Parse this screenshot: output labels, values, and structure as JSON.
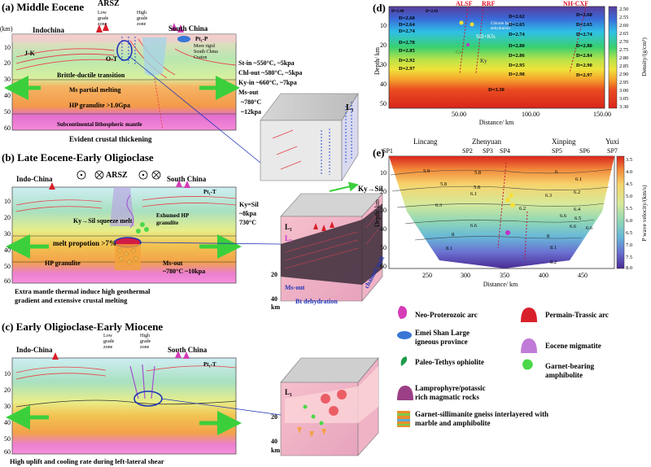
{
  "panel_a": {
    "title": "(a) Middle Eocene",
    "km_unit": "(km)",
    "arsz": "ARSZ",
    "low_grade_zone": [
      "Low",
      "grade",
      "zone"
    ],
    "high_grade_zone": [
      "High",
      "grade",
      "zone"
    ],
    "indochina": "Indochina",
    "south_china": "South China",
    "pt1_p": "Pt₁-P",
    "more_rigid": [
      "More rigid",
      "South China",
      "Craton"
    ],
    "j_k": "J-K",
    "o_t": "O-T",
    "brittle_ductile": "Brittle-ductile transition",
    "ms_partial_melting": "Ms partial melting",
    "hp_granulite": "HP granulite >1.0Gpa",
    "subcontinental": "Subcontinental lithospheric mantle",
    "caption": "Evident crustal thickening",
    "depth_ticks": [
      "10",
      "20",
      "30",
      "40",
      "50",
      "60"
    ],
    "conditions": [
      "St-in ~550°C, ~5kpa",
      "Chl-out ~580°C, ~5kpa",
      "Ky-in ~660°C, ~7kpa",
      "Ms-out",
      "~780°C",
      "~12kpa"
    ],
    "block_label": "L₁"
  },
  "panel_b": {
    "title": "(b) Late Eocene-Early Oligioclase",
    "indochina": "Indo-China",
    "arsz": "ARSZ",
    "south_china": "South China",
    "pt1_t": "Pt₁-T",
    "ky_sil_squeeze": "Ky→Sil squeeze melt",
    "exhumed": [
      "Exhumed HP",
      "granulite"
    ],
    "melt_proportion": "melt propotion >7%",
    "hp_granulite": "HP granulite",
    "ms_out": [
      "Ms-out",
      "~780°C ~10kpa"
    ],
    "caption": [
      "Extra mantle thermal induce high  geothermal",
      "gradient and extensive crustal melting"
    ],
    "depth_ticks": [
      "10",
      "20",
      "30",
      "40",
      "50",
      "60"
    ],
    "ky_sil_cond": [
      "Ky=Sil",
      "~8kpa",
      "730°C"
    ],
    "block_l1": "L₁",
    "block_l2": "L₂",
    "ky_sil_arrow": "Ky→Sil",
    "block_depth": [
      "20",
      "40",
      "km"
    ],
    "ms_out_block": "Ms-out",
    "bt_dehydration": "Bt dehydration",
    "channel_melt": "channel melt"
  },
  "panel_c": {
    "title": "(c) Early Oligioclase-Early Miocene",
    "indochina": "Indo-China",
    "low_grade_zone": [
      "Low",
      "grade",
      "zone"
    ],
    "high_grade_zone": [
      "High",
      "grade",
      "zone"
    ],
    "south_china": "South China",
    "pt1_t": "Pt₁-T",
    "caption": "High uplift and cooling rate during left-lateral shear",
    "depth_ticks": [
      "10",
      "20",
      "30",
      "40",
      "50",
      "60"
    ],
    "block_label": "L₁",
    "block_depth": [
      "20",
      "40",
      "km"
    ]
  },
  "panel_d": {
    "title": "(d)",
    "alsf": "ALSF",
    "rrf": "RRF",
    "nh_cxf": "NH-CXF",
    "chlorite": [
      "Chlorite fast",
      "dehydration"
    ],
    "sill_kfs": "Sill+Kfs",
    "grt": "Grt",
    "ky": "Ky",
    "density_labels": [
      {
        "t": "D=2.40"
      },
      {
        "t": "D=2.42"
      },
      {
        "t": "D=2.60"
      },
      {
        "t": "D=2.64"
      },
      {
        "t": "D=2.74"
      },
      {
        "t": "D=2.62"
      },
      {
        "t": "D=2.65"
      },
      {
        "t": "D=2.74"
      },
      {
        "t": "D=2.60"
      },
      {
        "t": "D=2.65"
      },
      {
        "t": "D=2.74"
      },
      {
        "t": "D=2.78"
      },
      {
        "t": "D=2.85"
      },
      {
        "t": "D=2.92"
      },
      {
        "t": "D=2.97"
      },
      {
        "t": "D=2.80"
      },
      {
        "t": "D=2.86"
      },
      {
        "t": "D=2.95"
      },
      {
        "t": "D=2.98"
      },
      {
        "t": "D=2.80"
      },
      {
        "t": "D=2.84"
      },
      {
        "t": "D=2.90"
      },
      {
        "t": "D=2.97"
      },
      {
        "t": "D=3.30"
      }
    ],
    "y_ticks": [
      "10",
      "20",
      "30",
      "40",
      "50"
    ],
    "x_ticks": [
      "50.00",
      "100.00",
      "150.00"
    ],
    "ylabel": "Depth/ km",
    "xlabel": "Distance/ km",
    "colorbar_ticks": [
      "2.50",
      "2.55",
      "2.60",
      "2.65",
      "2.70",
      "2.75",
      "2.80",
      "2.85",
      "2.90",
      "2.95",
      "3.00",
      "3.05",
      "3.30"
    ],
    "colorbar_label": "Density/(g/cm³)"
  },
  "panel_e": {
    "title": "(e)",
    "places": [
      "Lincang",
      "Zhenyuan",
      "Xinping",
      "Yuxi"
    ],
    "stations": [
      "SP1",
      "SP2",
      "SP3",
      "SP4",
      "SP5",
      "SP6",
      "SP7"
    ],
    "contours": [
      "5.9",
      "5.8",
      "5.8",
      "6",
      "6.1",
      "5.8",
      "6.1",
      "6.2",
      "6.3",
      "6.3",
      "6.2",
      "6.4",
      "6.5",
      "6.6",
      "6.6",
      "6.6",
      "6.6",
      "8",
      "8",
      "8.1",
      "8.1",
      "8.2"
    ],
    "y_ticks": [
      "10",
      "20",
      "30",
      "40",
      "50",
      "60"
    ],
    "x_ticks": [
      "250",
      "300",
      "350",
      "400",
      "450"
    ],
    "ylabel": "Depth/ km",
    "xlabel": "Distance/ km",
    "colorbar_ticks": [
      "3.5",
      "4.0",
      "4.5",
      "5.0",
      "5.5",
      "6.0",
      "6.5",
      "7.0",
      "7.5",
      "8.0"
    ],
    "colorbar_label": "P wave velocity/(km/s)"
  },
  "legend": {
    "items": [
      {
        "label": [
          "Neo-Proterozoic arc"
        ],
        "icon": "neo-proterozoic-arc-icon",
        "color": "#d63bb8"
      },
      {
        "label": [
          "Permain-Trassic arc"
        ],
        "icon": "permian-triassic-arc-icon",
        "color": "#d8202a"
      },
      {
        "label": [
          "Emei Shan Large",
          "igneous province"
        ],
        "icon": "emei-shan-lip-icon",
        "color": "#3877d6"
      },
      {
        "label": [
          "Eocene migmatite"
        ],
        "icon": "eocene-migmatite-icon",
        "color": "#c07bd8"
      },
      {
        "label": [
          "Paleo-Tethys ophiolite"
        ],
        "icon": "paleo-tethys-ophiolite-icon",
        "color": "#1f9a4a"
      },
      {
        "label": [
          "Garnet-bearing",
          "amphibolite"
        ],
        "icon": "garnet-amphibolite-icon",
        "color": "#4cd84a"
      },
      {
        "label": [
          "Lamprophyre/potassic",
          "rich magmatic rocks"
        ],
        "icon": "lamprophyre-icon",
        "color": "#9b3f86"
      },
      {
        "label": [
          "Garnet-sillimanite gneiss interlayered with",
          "marble and amphibolite"
        ],
        "icon": "gneiss-icon",
        "color": "#e88f2a"
      }
    ]
  }
}
